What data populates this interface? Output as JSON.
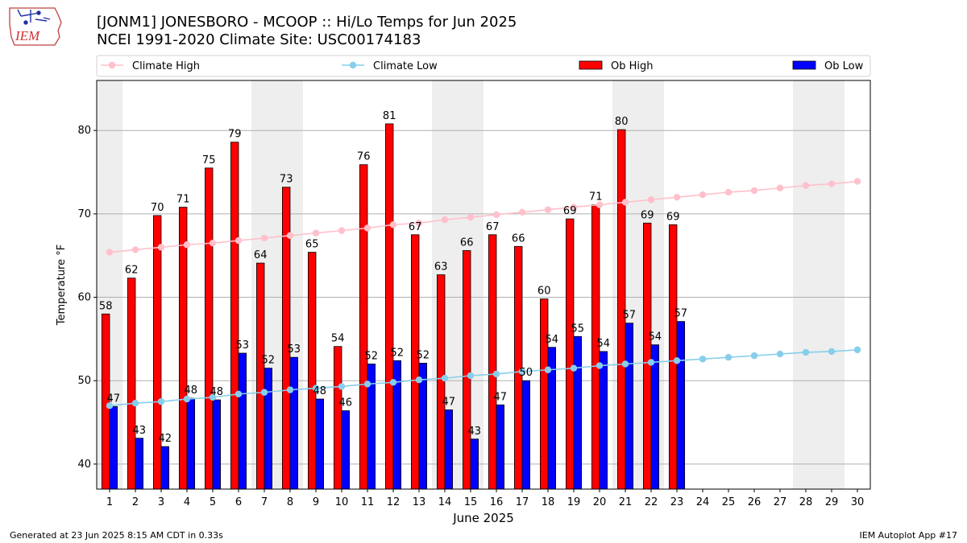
{
  "header": {
    "title": "[JONM1] JONESBORO - MCOOP :: Hi/Lo Temps for Jun 2025",
    "subtitle": "NCEI 1991-2020 Climate Site: USC00174183"
  },
  "logo": {
    "text": "IEM"
  },
  "footer": {
    "generated": "Generated at 23 Jun 2025 8:15 AM CDT in 0.33s",
    "app": "IEM Autoplot App #17"
  },
  "colors": {
    "climate_high": "#FFC0CB",
    "climate_low": "#87CEEB",
    "ob_high": "#FF0000",
    "ob_low": "#0000FF",
    "weekend": "#EEEEEE",
    "grid": "#B0B0B0"
  },
  "chart_data": {
    "type": "bar",
    "title": "[JONM1] JONESBORO - MCOOP :: Hi/Lo Temps for Jun 2025",
    "xlabel": "June 2025",
    "ylabel": "Temperature °F",
    "ylim": [
      37,
      86
    ],
    "yticks": [
      40,
      50,
      60,
      70,
      80
    ],
    "grid": true,
    "legend_position": "top",
    "categories": [
      "1",
      "2",
      "3",
      "4",
      "5",
      "6",
      "7",
      "8",
      "9",
      "10",
      "11",
      "12",
      "13",
      "14",
      "15",
      "16",
      "17",
      "18",
      "19",
      "20",
      "21",
      "22",
      "23",
      "24",
      "25",
      "26",
      "27",
      "28",
      "29",
      "30"
    ],
    "weekend_days": [
      1,
      7,
      8,
      14,
      15,
      21,
      22,
      28,
      29
    ],
    "legend": [
      "Climate High",
      "Climate Low",
      "Ob High",
      "Ob Low"
    ],
    "series": [
      {
        "name": "Ob High",
        "type": "bar",
        "values": [
          58,
          62.3,
          69.8,
          70.8,
          75.5,
          78.6,
          64.1,
          73.2,
          65.4,
          54.1,
          75.9,
          80.8,
          67.5,
          62.7,
          65.6,
          67.5,
          66.1,
          59.8,
          69.4,
          71.1,
          80.1,
          68.9,
          68.7,
          null,
          null,
          null,
          null,
          null,
          null,
          null
        ],
        "labels": [
          "58",
          "62",
          "70",
          "71",
          "75",
          "79",
          "64",
          "73",
          "65",
          "54",
          "76",
          "81",
          "67",
          "63",
          "66",
          "67",
          "66",
          "60",
          "69",
          "71",
          "80",
          "69",
          "69",
          "",
          "",
          "",
          "",
          "",
          "",
          ""
        ]
      },
      {
        "name": "Ob Low",
        "type": "bar",
        "values": [
          46.9,
          43.1,
          42.1,
          47.9,
          47.7,
          53.3,
          51.5,
          52.8,
          47.8,
          46.4,
          52,
          52.4,
          52.1,
          46.5,
          43,
          47.1,
          50,
          54,
          55.3,
          53.5,
          56.9,
          54.3,
          57.1,
          null,
          null,
          null,
          null,
          null,
          null,
          null
        ],
        "labels": [
          "47",
          "43",
          "42",
          "48",
          "48",
          "53",
          "52",
          "53",
          "48",
          "46",
          "52",
          "52",
          "52",
          "47",
          "43",
          "47",
          "50",
          "54",
          "55",
          "54",
          "57",
          "54",
          "57",
          "",
          "",
          "",
          "",
          "",
          "",
          ""
        ]
      },
      {
        "name": "Climate High",
        "type": "line",
        "values": [
          65.4,
          65.7,
          66,
          66.3,
          66.5,
          66.8,
          67.1,
          67.4,
          67.7,
          68,
          68.3,
          68.7,
          68.9,
          69.3,
          69.6,
          69.9,
          70.2,
          70.5,
          70.8,
          71.1,
          71.4,
          71.7,
          72,
          72.3,
          72.6,
          72.8,
          73.1,
          73.4,
          73.6,
          73.9
        ]
      },
      {
        "name": "Climate Low",
        "type": "line",
        "values": [
          47,
          47.3,
          47.5,
          47.8,
          48,
          48.4,
          48.6,
          48.9,
          49.1,
          49.3,
          49.6,
          49.8,
          50.1,
          50.3,
          50.6,
          50.8,
          51.1,
          51.3,
          51.5,
          51.8,
          52,
          52.2,
          52.4,
          52.6,
          52.8,
          53,
          53.2,
          53.4,
          53.5,
          53.7
        ]
      }
    ]
  }
}
